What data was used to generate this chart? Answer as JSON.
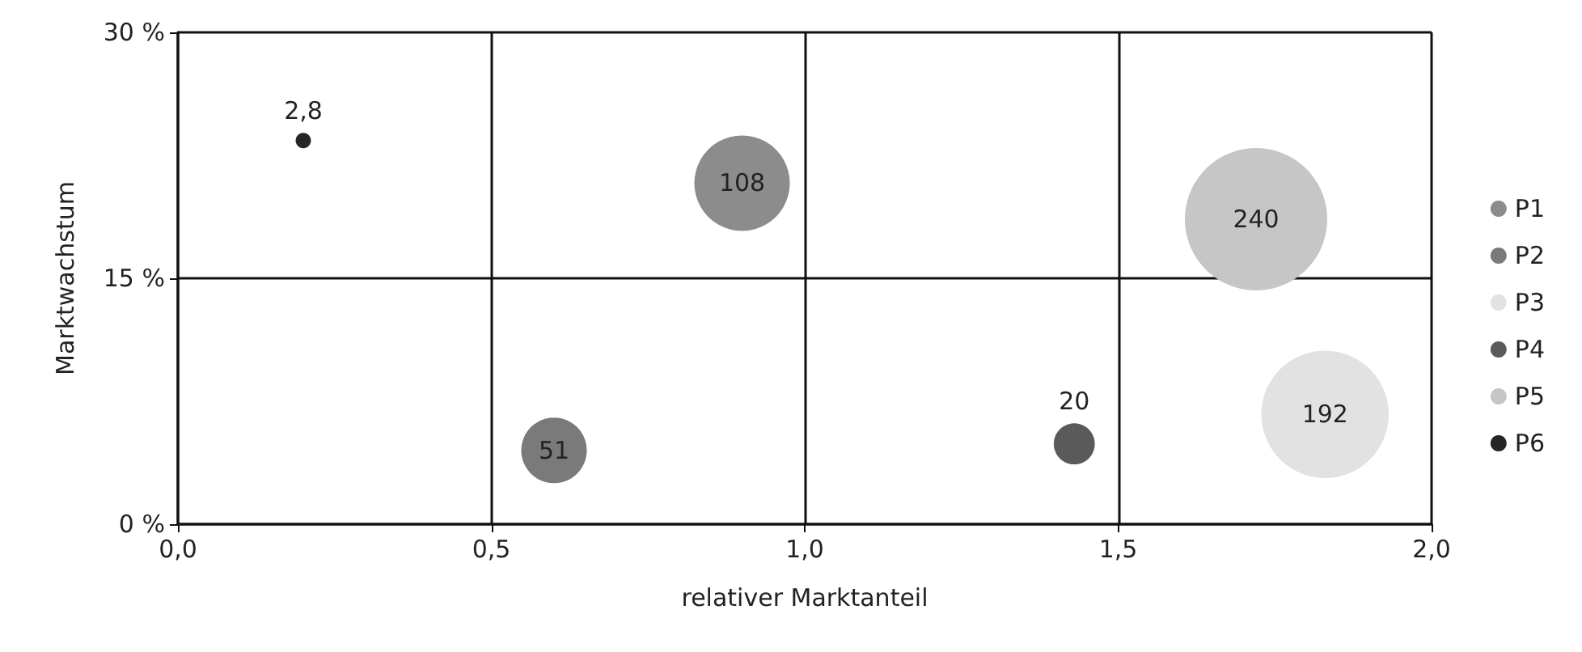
{
  "chart_data": {
    "type": "bubble",
    "xlabel": "relativer Marktanteil",
    "ylabel": "Marktwachstum",
    "xlim": [
      0,
      2
    ],
    "xticks": [
      {
        "value": 0,
        "label": "0,0"
      },
      {
        "value": 0.5,
        "label": "0,5"
      },
      {
        "value": 1,
        "label": "1,0"
      },
      {
        "value": 1.5,
        "label": "1,5"
      },
      {
        "value": 2,
        "label": "2,0"
      }
    ],
    "ylim": [
      0,
      30
    ],
    "yticks": [
      {
        "value": 0,
        "label": "0 %"
      },
      {
        "value": 15,
        "label": "15 %"
      },
      {
        "value": 30,
        "label": "30 %"
      }
    ],
    "grid": true,
    "legend": "right",
    "marker": "circle",
    "series": [
      {
        "name": "P1",
        "color": "#8c8c8c",
        "x": [
          0.9
        ],
        "values": [
          20.8
        ],
        "sizes": [
          108
        ],
        "value_labels": [
          "108"
        ]
      },
      {
        "name": "P2",
        "color": "#7a7a7a",
        "x": [
          0.6
        ],
        "values": [
          4.5
        ],
        "sizes": [
          51
        ],
        "value_labels": [
          "51"
        ]
      },
      {
        "name": "P3",
        "color": "#e2e2e2",
        "x": [
          1.83
        ],
        "values": [
          6.7
        ],
        "sizes": [
          192
        ],
        "value_labels": [
          "192"
        ]
      },
      {
        "name": "P4",
        "color": "#5a5a5a",
        "x": [
          1.43
        ],
        "values": [
          4.9
        ],
        "sizes": [
          20
        ],
        "value_labels": [
          "20"
        ]
      },
      {
        "name": "P5",
        "color": "#c6c6c6",
        "x": [
          1.72
        ],
        "values": [
          18.6
        ],
        "sizes": [
          240
        ],
        "value_labels": [
          "240"
        ]
      },
      {
        "name": "P6",
        "color": "#262626",
        "x": [
          0.2
        ],
        "values": [
          23.4
        ],
        "sizes": [
          2.8
        ],
        "value_labels": [
          "2,8"
        ]
      }
    ]
  }
}
